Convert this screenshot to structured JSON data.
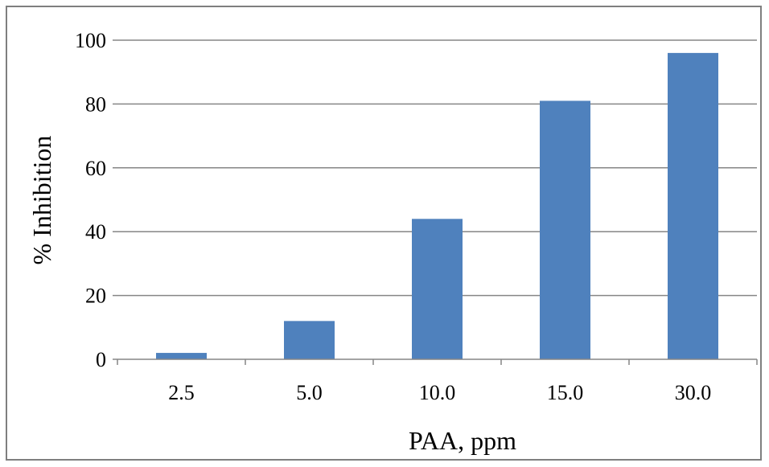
{
  "chart_data": {
    "type": "bar",
    "categories": [
      "2.5",
      "5.0",
      "10.0",
      "15.0",
      "30.0"
    ],
    "values": [
      2,
      12,
      44,
      81,
      96
    ],
    "xlabel": "PAA, ppm",
    "ylabel": "% Inhibition",
    "ylim": [
      0,
      100
    ],
    "yticks": [
      "0",
      "20",
      "40",
      "60",
      "80",
      "100"
    ],
    "grid": true,
    "legend": "none",
    "colors": {
      "bar": "#4F81BD",
      "grid": "#868686",
      "axis": "#868686",
      "border": "#7f7f7f"
    }
  }
}
